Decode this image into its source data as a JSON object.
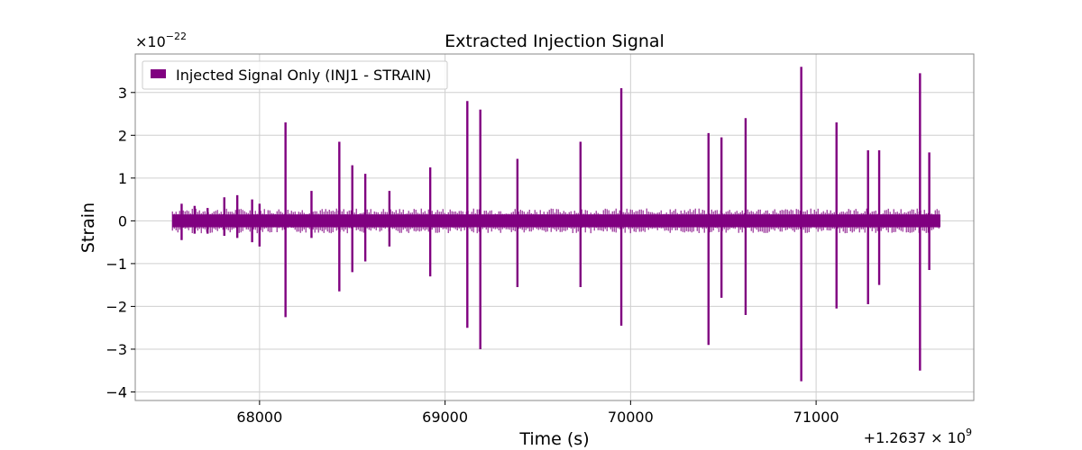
{
  "chart_data": {
    "type": "line",
    "title": "Extracted Injection Signal",
    "xlabel": "Time (s)",
    "ylabel": "Strain",
    "y_scale_label": "×10",
    "y_scale_exponent": "−22",
    "x_offset_label": "+1.2637 × 10",
    "x_offset_exponent": "9",
    "xlim": [
      67330,
      71850
    ],
    "ylim": [
      -4.2,
      3.9
    ],
    "x_ticks": [
      68000,
      69000,
      70000,
      71000
    ],
    "x_tick_labels": [
      "68000",
      "69000",
      "70000",
      "71000"
    ],
    "y_ticks": [
      -4,
      -3,
      -2,
      -1,
      0,
      1,
      2,
      3
    ],
    "y_tick_labels": [
      "−4",
      "−3",
      "−2",
      "−1",
      "0",
      "1",
      "2",
      "3"
    ],
    "grid": true,
    "legend_position": "top-left",
    "series": [
      {
        "name": "Injected Signal Only (INJ1 - STRAIN)",
        "color": "#800080",
        "baseline_range": [
          67530,
          71670
        ],
        "baseline_amplitude": 0.15,
        "spikes": [
          {
            "x": 67580,
            "max": 0.4,
            "min": -0.45
          },
          {
            "x": 67650,
            "max": 0.35,
            "min": -0.3
          },
          {
            "x": 67720,
            "max": 0.3,
            "min": -0.3
          },
          {
            "x": 67810,
            "max": 0.55,
            "min": -0.35
          },
          {
            "x": 67880,
            "max": 0.6,
            "min": -0.4
          },
          {
            "x": 67960,
            "max": 0.5,
            "min": -0.5
          },
          {
            "x": 68000,
            "max": 0.4,
            "min": -0.6
          },
          {
            "x": 68140,
            "max": 2.3,
            "min": -2.25
          },
          {
            "x": 68280,
            "max": 0.7,
            "min": -0.4
          },
          {
            "x": 68430,
            "max": 1.85,
            "min": -1.65
          },
          {
            "x": 68500,
            "max": 1.3,
            "min": -1.2
          },
          {
            "x": 68570,
            "max": 1.1,
            "min": -0.95
          },
          {
            "x": 68700,
            "max": 0.7,
            "min": -0.6
          },
          {
            "x": 68920,
            "max": 1.25,
            "min": -1.3
          },
          {
            "x": 69120,
            "max": 2.8,
            "min": -2.5
          },
          {
            "x": 69190,
            "max": 2.6,
            "min": -3.0
          },
          {
            "x": 69390,
            "max": 1.45,
            "min": -1.55
          },
          {
            "x": 69730,
            "max": 1.85,
            "min": -1.55
          },
          {
            "x": 69950,
            "max": 3.1,
            "min": -2.45
          },
          {
            "x": 70420,
            "max": 2.05,
            "min": -2.9
          },
          {
            "x": 70490,
            "max": 1.95,
            "min": -1.8
          },
          {
            "x": 70620,
            "max": 2.4,
            "min": -2.2
          },
          {
            "x": 70920,
            "max": 3.6,
            "min": -3.75
          },
          {
            "x": 71110,
            "max": 2.3,
            "min": -2.05
          },
          {
            "x": 71280,
            "max": 1.65,
            "min": -1.95
          },
          {
            "x": 71340,
            "max": 1.65,
            "min": -1.5
          },
          {
            "x": 71560,
            "max": 3.45,
            "min": -3.5
          },
          {
            "x": 71610,
            "max": 1.6,
            "min": -1.15
          }
        ]
      }
    ]
  }
}
